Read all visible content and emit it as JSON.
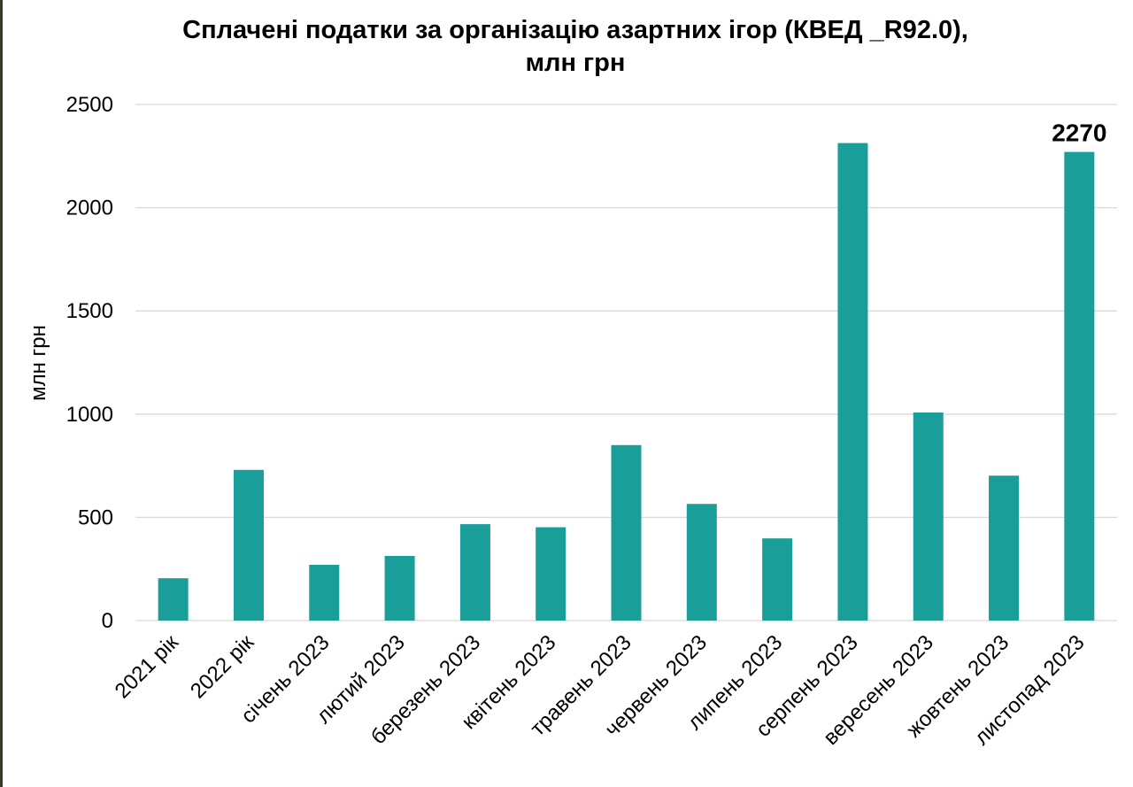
{
  "chart_data": {
    "type": "bar",
    "title": [
      "Сплачені податки за організацію азартних ігор (КВЕД _R92.0),",
      "млн грн"
    ],
    "ylabel": "млн грн",
    "xlabel": "",
    "ylim": [
      0,
      2500
    ],
    "yticks": [
      0,
      500,
      1000,
      1500,
      2000,
      2500
    ],
    "grid": true,
    "legend": "none",
    "bar_color": "#1a9e9a",
    "categories": [
      "2021 рік",
      "2022 рік",
      "січень 2023",
      "лютий 2023",
      "березень 2023",
      "квітень 2023",
      "травень 2023",
      "червень 2023",
      "липень 2023",
      "серпень 2023",
      "вересень 2023",
      "жовтень 2023",
      "листопад 2023"
    ],
    "values": [
      205,
      730,
      270,
      313,
      467,
      452,
      850,
      565,
      398,
      2313,
      1008,
      702,
      2270
    ],
    "data_labels": [
      null,
      null,
      null,
      null,
      null,
      null,
      null,
      null,
      null,
      null,
      null,
      null,
      "2270"
    ]
  }
}
